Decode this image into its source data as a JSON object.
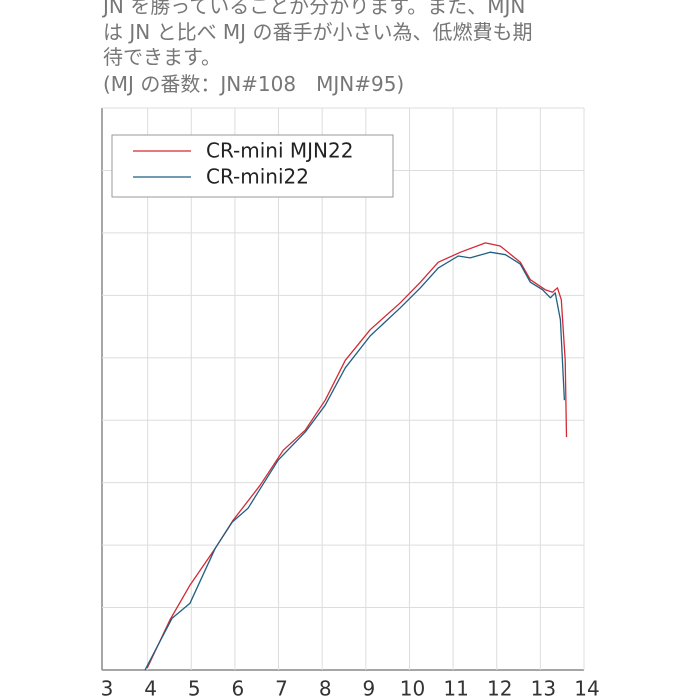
{
  "text_lines": [
    "JN を勝っていることが分かります。また、MJN",
    "は JN と比べ MJ の番手が小さい為、低燃費も期",
    "待できます。",
    "(MJ の番数：JN#108　MJN#95)"
  ],
  "chart_data": {
    "type": "line",
    "xlim": [
      3,
      14
    ],
    "xticks": [
      3,
      4,
      5,
      6,
      7,
      8,
      9,
      10,
      11,
      12,
      13,
      14
    ],
    "ylim": [
      0,
      9
    ],
    "yticks": [
      0,
      1,
      2,
      3,
      4,
      5,
      6,
      7,
      8,
      9
    ],
    "grid": true,
    "legend": "upper left",
    "series": [
      {
        "name": "CR-mini MJN22",
        "color": "#d42a35",
        "x": [
          3.99,
          4.51,
          4.97,
          5.55,
          5.96,
          6.58,
          7.11,
          7.61,
          8.07,
          8.53,
          9.1,
          9.79,
          10.25,
          10.66,
          11.17,
          11.74,
          12.08,
          12.54,
          12.77,
          13.11,
          13.28,
          13.39,
          13.48,
          13.57,
          13.6
        ],
        "values": [
          0.03,
          0.8,
          1.36,
          1.95,
          2.4,
          2.96,
          3.52,
          3.84,
          4.32,
          4.96,
          5.45,
          5.88,
          6.21,
          6.53,
          6.69,
          6.84,
          6.79,
          6.53,
          6.25,
          6.09,
          6.05,
          6.12,
          5.93,
          4.96,
          3.73
        ]
      },
      {
        "name": "CR-mini22",
        "color": "#1f5f82",
        "x": [
          3.94,
          4.56,
          4.97,
          5.55,
          5.94,
          6.3,
          6.99,
          7.61,
          8.07,
          8.53,
          9.1,
          9.79,
          10.25,
          10.66,
          11.12,
          11.39,
          11.85,
          12.2,
          12.54,
          12.77,
          13.05,
          13.23,
          13.34,
          13.46,
          13.55
        ],
        "values": [
          0,
          0.83,
          1.07,
          1.95,
          2.37,
          2.59,
          3.36,
          3.81,
          4.24,
          4.84,
          5.35,
          5.8,
          6.12,
          6.44,
          6.63,
          6.6,
          6.69,
          6.65,
          6.5,
          6.21,
          6.09,
          5.96,
          6.04,
          5.61,
          4.32
        ]
      }
    ]
  }
}
